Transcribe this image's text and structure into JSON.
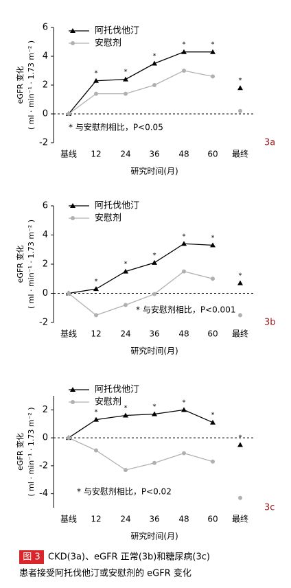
{
  "chart_data": [
    {
      "type": "line",
      "panel": "3a",
      "ylabel": [
        "eGFR 变化",
        "( ml · min⁻¹ · 1.73 m⁻² )"
      ],
      "xlabel": "研究时间(月)",
      "categories": [
        "基线",
        "12",
        "24",
        "36",
        "48",
        "60",
        "最终"
      ],
      "ylim": [
        -2,
        6
      ],
      "yticks": [
        -2,
        0,
        2,
        4,
        6
      ],
      "note": "* 与安慰剂相比，P<0.05",
      "series": [
        {
          "name": "阿托伐他汀",
          "color": "#000000",
          "marker": "triangle",
          "values": [
            0,
            2.3,
            2.4,
            3.5,
            4.3,
            4.3,
            1.8
          ],
          "significance": [
            null,
            "*",
            "*",
            "*",
            "*",
            "*",
            "*"
          ]
        },
        {
          "name": "安慰剂",
          "color": "#b0b0b0",
          "marker": "circle",
          "values": [
            0,
            1.4,
            1.4,
            2.0,
            3.0,
            2.6,
            0.2
          ]
        }
      ]
    },
    {
      "type": "line",
      "panel": "3b",
      "ylabel": [
        "eGFR 变化",
        "( ml · min⁻¹ · 1.73 m⁻² )"
      ],
      "xlabel": "研究时间(月)",
      "categories": [
        "基线",
        "12",
        "24",
        "36",
        "48",
        "60",
        "最终"
      ],
      "ylim": [
        -2,
        6
      ],
      "yticks": [
        -2,
        0,
        2,
        4,
        6
      ],
      "note": "* 与安慰剂相比，P<0.001",
      "series": [
        {
          "name": "阿托伐他汀",
          "color": "#000000",
          "marker": "triangle",
          "values": [
            0,
            0.3,
            1.5,
            2.1,
            3.4,
            3.3,
            0.7
          ],
          "significance": [
            null,
            "*",
            "*",
            "*",
            "*",
            "*",
            "*"
          ]
        },
        {
          "name": "安慰剂",
          "color": "#b0b0b0",
          "marker": "circle",
          "values": [
            0,
            -1.5,
            -0.8,
            -0.05,
            1.5,
            1.0,
            -1.5
          ]
        }
      ]
    },
    {
      "type": "line",
      "panel": "3c",
      "ylabel": [
        "eGFR 变化",
        "( ml · min⁻¹ · 1.73 m⁻² )"
      ],
      "xlabel": "研究时间(月)",
      "categories": [
        "基线",
        "12",
        "24",
        "36",
        "48",
        "60",
        "最终"
      ],
      "ylim": [
        -5,
        3
      ],
      "yticks": [
        -4,
        -2,
        0,
        2
      ],
      "note": "* 与安慰剂相比，P<0.02",
      "series": [
        {
          "name": "阿托伐他汀",
          "color": "#000000",
          "marker": "triangle",
          "values": [
            0,
            1.3,
            1.6,
            1.7,
            2.0,
            1.1,
            -0.5
          ],
          "significance": [
            null,
            "*",
            "*",
            "*",
            "*",
            "*",
            "*"
          ]
        },
        {
          "name": "安慰剂",
          "color": "#b0b0b0",
          "marker": "circle",
          "values": [
            0,
            -0.9,
            -2.3,
            -1.8,
            -1.1,
            -1.7,
            -4.3
          ]
        }
      ]
    }
  ],
  "caption": {
    "label": "图 3",
    "line1": "CKD(3a)、eGFR 正常(3b)和糖尿病(3c)",
    "line2": "患者接受阿托伐他汀或安慰剂的 eGFR 变化"
  }
}
